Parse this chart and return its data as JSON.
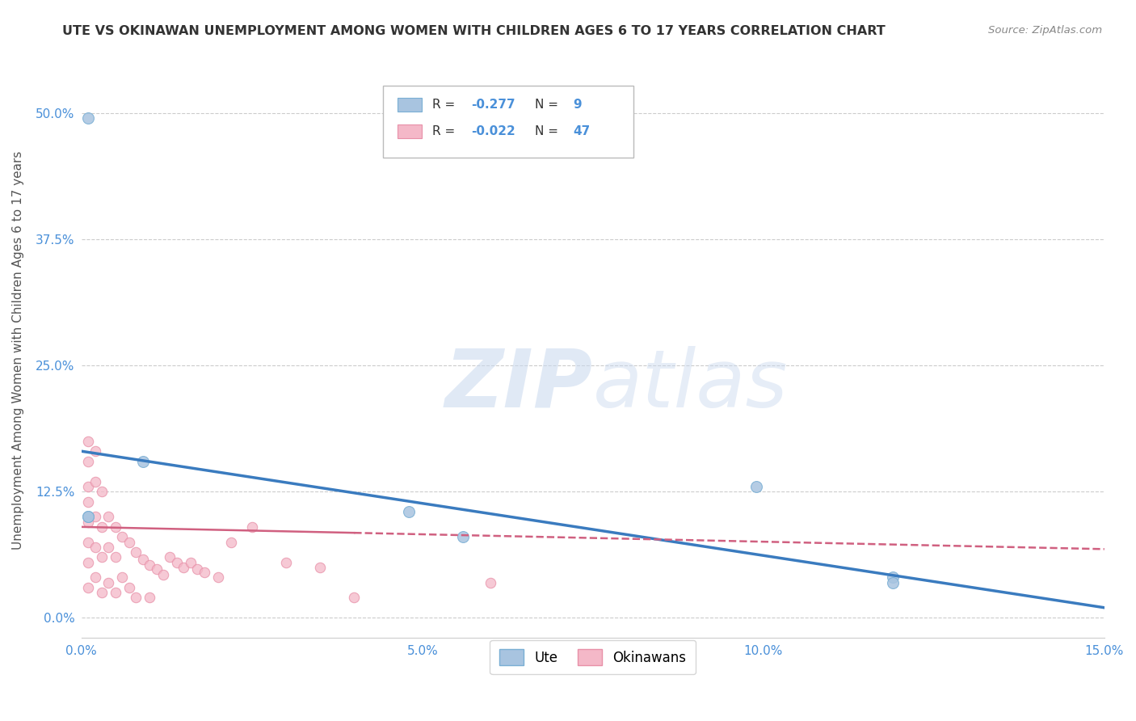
{
  "title": "UTE VS OKINAWAN UNEMPLOYMENT AMONG WOMEN WITH CHILDREN AGES 6 TO 17 YEARS CORRELATION CHART",
  "source": "Source: ZipAtlas.com",
  "ylabel": "Unemployment Among Women with Children Ages 6 to 17 years",
  "xlabel": "",
  "watermark_zip": "ZIP",
  "watermark_atlas": "atlas",
  "xlim": [
    0.0,
    0.15
  ],
  "ylim": [
    -0.02,
    0.55
  ],
  "yticks": [
    0.0,
    0.125,
    0.25,
    0.375,
    0.5
  ],
  "ytick_labels": [
    "0.0%",
    "12.5%",
    "25.0%",
    "37.5%",
    "50.0%"
  ],
  "xticks": [
    0.0,
    0.05,
    0.1,
    0.15
  ],
  "xtick_labels": [
    "0.0%",
    "5.0%",
    "10.0%",
    "15.0%"
  ],
  "ute_color": "#a8c4e0",
  "ute_edge_color": "#7aafd4",
  "ute_line_color": "#3a7bbf",
  "okinawan_color": "#f4b8c8",
  "okinawan_edge_color": "#e890a8",
  "okinawan_line_color": "#d06080",
  "legend_ute_R": "-0.277",
  "legend_ute_N": "9",
  "legend_okinawan_R": "-0.022",
  "legend_okinawan_N": "47",
  "ute_x": [
    0.001,
    0.009,
    0.048,
    0.056,
    0.001,
    0.099,
    0.119,
    0.119,
    0.001
  ],
  "ute_y": [
    0.495,
    0.155,
    0.105,
    0.08,
    0.1,
    0.13,
    0.04,
    0.035,
    0.1
  ],
  "okinawan_x": [
    0.001,
    0.001,
    0.001,
    0.001,
    0.001,
    0.001,
    0.001,
    0.001,
    0.002,
    0.002,
    0.002,
    0.002,
    0.002,
    0.003,
    0.003,
    0.003,
    0.003,
    0.004,
    0.004,
    0.004,
    0.005,
    0.005,
    0.005,
    0.006,
    0.006,
    0.007,
    0.007,
    0.008,
    0.008,
    0.009,
    0.01,
    0.01,
    0.011,
    0.012,
    0.013,
    0.014,
    0.015,
    0.016,
    0.017,
    0.018,
    0.02,
    0.022,
    0.025,
    0.03,
    0.035,
    0.04,
    0.06
  ],
  "okinawan_y": [
    0.175,
    0.155,
    0.13,
    0.115,
    0.095,
    0.075,
    0.055,
    0.03,
    0.165,
    0.135,
    0.1,
    0.07,
    0.04,
    0.125,
    0.09,
    0.06,
    0.025,
    0.1,
    0.07,
    0.035,
    0.09,
    0.06,
    0.025,
    0.08,
    0.04,
    0.075,
    0.03,
    0.065,
    0.02,
    0.058,
    0.052,
    0.02,
    0.048,
    0.043,
    0.06,
    0.055,
    0.05,
    0.055,
    0.048,
    0.045,
    0.04,
    0.075,
    0.09,
    0.055,
    0.05,
    0.02,
    0.035
  ],
  "ute_line_x0": 0.0,
  "ute_line_y0": 0.165,
  "ute_line_x1": 0.15,
  "ute_line_y1": 0.01,
  "ok_line_x0": 0.0,
  "ok_line_y0": 0.09,
  "ok_line_x1": 0.15,
  "ok_line_y1": 0.068,
  "grid_color": "#cccccc",
  "background_color": "#ffffff",
  "title_color": "#333333",
  "axis_label_color": "#555555",
  "tick_label_color": "#4a90d9",
  "source_color": "#888888",
  "legend_text_color": "#333333",
  "legend_value_color": "#4a90d9"
}
